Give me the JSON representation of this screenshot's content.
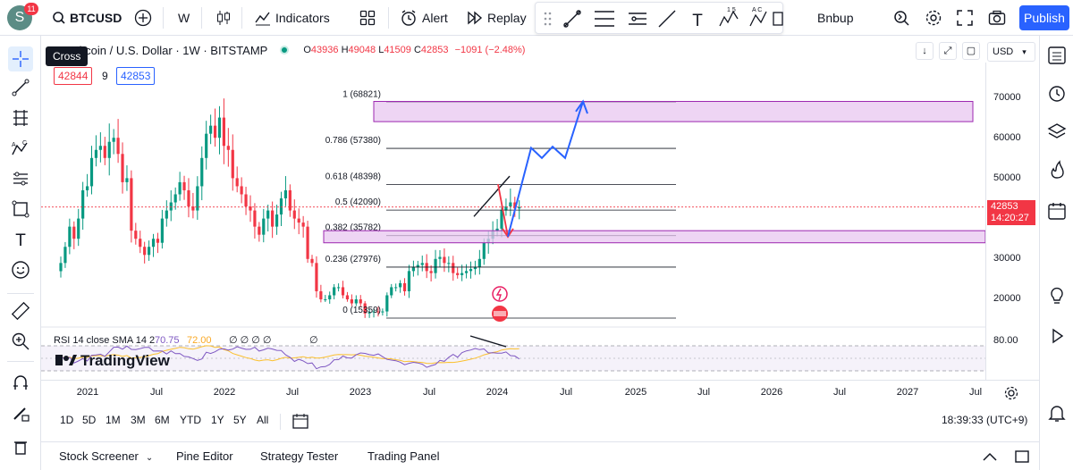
{
  "topbar": {
    "avatar_letter": "S",
    "notification_count": "11",
    "symbol": "BTCUSD",
    "interval": "W",
    "indicators_label": "Indicators",
    "alert_label": "Alert",
    "replay_label": "Replay",
    "layout_name": "Bnbup",
    "publish_label": "Publish"
  },
  "drawbar": {
    "icons": [
      "drag-handle-icon",
      "trendline-icon",
      "parallel-channel-icon",
      "pitchfork-icon",
      "line-icon",
      "text-tool-icon",
      "elliott-wave-icon",
      "abcd-pattern-icon",
      "rectangle-icon"
    ]
  },
  "left_toolbar": {
    "tooltip": "Cross",
    "icons": [
      "crosshair-icon",
      "trendline-icon",
      "fib-retracement-icon",
      "pattern-icon",
      "forecasting-icon",
      "geometric-shapes-icon",
      "text-icon",
      "emoji-icon",
      "ruler-icon",
      "zoom-in-icon",
      "magnet-icon",
      "pencil-lock-icon",
      "trash-icon"
    ]
  },
  "right_sidebar": {
    "icons": [
      "watchlist-icon",
      "alerts-clock-icon",
      "data-window-icon",
      "hotlist-flame-icon",
      "calendar-icon",
      "ideas-bulb-icon",
      "streams-icon",
      "notifications-bell-icon"
    ]
  },
  "legend": {
    "title": "Bitcoin / U.S. Dollar · 1W · BITSTAMP",
    "o_label": "O",
    "o": "43936",
    "h_label": "H",
    "h": "49048",
    "l_label": "L",
    "l": "41509",
    "c_label": "C",
    "c": "42853",
    "change": "−1091 (−2.48%)",
    "bid": "42844",
    "spread": "9",
    "ask": "42853"
  },
  "price_scale": {
    "currency": "USD",
    "ticks": [
      "70000",
      "60000",
      "50000",
      "40000",
      "30000",
      "20000"
    ],
    "last_price": "42853",
    "countdown": "14:20:27",
    "rsi_tick": "80.00"
  },
  "fib_levels": [
    {
      "label": "1 (68821)",
      "value": 68821
    },
    {
      "label": "0.786 (57380)",
      "value": 57380
    },
    {
      "label": "0.618 (48398)",
      "value": 48398
    },
    {
      "label": "0.5 (42090)",
      "value": 42090
    },
    {
      "label": "0.382 (35782)",
      "value": 35782
    },
    {
      "label": "0.236 (27976)",
      "value": 27976
    },
    {
      "label": "0 (15359)",
      "value": 15359
    }
  ],
  "rsi": {
    "label": "RSI 14 close SMA 14 2",
    "value": "70.75",
    "sma": "72.00",
    "extras": "∅ ∅ ∅ ∅",
    "extra2": "∅"
  },
  "watermark": "TradingView",
  "time_axis": [
    "2021",
    "Jul",
    "2022",
    "Jul",
    "2023",
    "Jul",
    "2024",
    "Jul",
    "2025",
    "Jul",
    "2026",
    "Jul",
    "2027",
    "Jul"
  ],
  "ranges": [
    "1D",
    "5D",
    "1M",
    "3M",
    "6M",
    "YTD",
    "1Y",
    "5Y",
    "All"
  ],
  "clock": "18:39:33 (UTC+9)",
  "bottom_tabs": [
    "Stock Screener",
    "Pine Editor",
    "Strategy Tester",
    "Trading Panel"
  ],
  "colors": {
    "up": "#089981",
    "down": "#f23645",
    "zone": "#e8c7f0",
    "zone_border": "#9c27b0",
    "projection": "#2962ff",
    "rsi_line": "#7e57c2",
    "rsi_sma": "#fbc02d"
  },
  "chart_data": {
    "type": "candlestick",
    "ylim": [
      10000,
      75000
    ],
    "weekly_close_approx": [
      29000,
      33000,
      38000,
      35000,
      40000,
      47000,
      48000,
      55000,
      57000,
      58000,
      55000,
      59000,
      60000,
      56000,
      49000,
      50000,
      37000,
      35000,
      33000,
      31000,
      33000,
      35000,
      34000,
      40000,
      42000,
      44000,
      46000,
      49000,
      47000,
      43000,
      42000,
      48000,
      55000,
      61000,
      63000,
      60000,
      65000,
      58000,
      57000,
      50000,
      48000,
      46000,
      43000,
      42000,
      38000,
      36000,
      40000,
      42000,
      38000,
      41000,
      45000,
      47000,
      42000,
      40000,
      39000,
      38000,
      30000,
      29000,
      22000,
      20000,
      20000,
      21000,
      23000,
      23000,
      21000,
      20000,
      19000,
      20000,
      19000,
      16500,
      16800,
      17000,
      16800,
      17000,
      21000,
      23000,
      23000,
      24000,
      22000,
      27000,
      28000,
      28500,
      29000,
      27000,
      26500,
      30000,
      30500,
      29000,
      29000,
      26500,
      26000,
      26500,
      27000,
      27500,
      28000,
      30000,
      34000,
      35000,
      37000,
      37500,
      42000,
      43000,
      44000,
      42500,
      42853
    ],
    "projection_path": [
      [
        42853,
        "start"
      ],
      [
        58000,
        "up"
      ],
      [
        55000,
        "pullback"
      ],
      [
        58000,
        "up"
      ],
      [
        55000,
        "pullback"
      ],
      [
        69000,
        "target"
      ]
    ]
  }
}
